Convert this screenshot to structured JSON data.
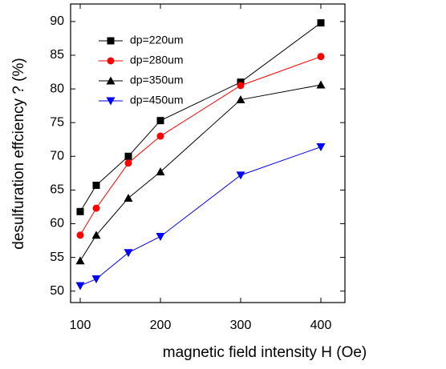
{
  "chart_data": {
    "type": "line",
    "x_label": "magnetic field intensity  H (Oe)",
    "y_label": "desulfuration effciency  ? (%)",
    "x": [
      100,
      120,
      160,
      200,
      300,
      400
    ],
    "series": [
      {
        "name": "dp=220um",
        "color": "#000000",
        "marker": "square",
        "values": [
          61.8,
          65.7,
          70.0,
          75.3,
          81.0,
          89.8
        ]
      },
      {
        "name": "dp=280um",
        "color": "#ff0000",
        "marker": "circle",
        "values": [
          58.3,
          62.3,
          69.0,
          73.0,
          80.5,
          84.8
        ]
      },
      {
        "name": "dp=350um",
        "color": "#000000",
        "marker": "triangle-up",
        "values": [
          54.5,
          58.3,
          63.8,
          67.7,
          78.4,
          80.6
        ]
      },
      {
        "name": "dp=450um",
        "color": "#0000ff",
        "marker": "triangle-down",
        "values": [
          50.8,
          51.8,
          55.7,
          58.1,
          67.2,
          71.4
        ]
      }
    ],
    "xlim": [
      88,
      430
    ],
    "xticks": [
      100,
      200,
      300,
      400
    ],
    "ylim": [
      48.3,
      92.6
    ],
    "yticks": [
      50,
      55,
      60,
      65,
      70,
      75,
      80,
      85,
      90
    ]
  }
}
